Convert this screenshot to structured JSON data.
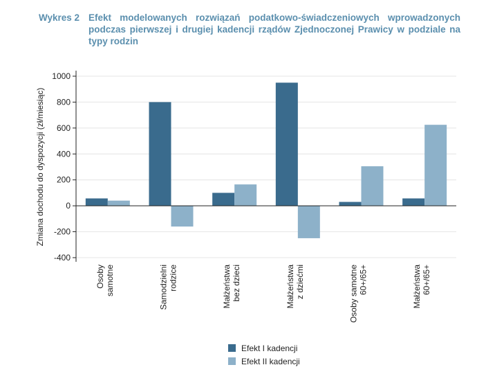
{
  "figure": {
    "label": "Wykres 2",
    "title": "Efekt modelowanych rozwiązań podatkowo-świadczeniowych wprowadzonych podczas pierwszej i drugiej kadencji rządów Zjednoczonej Prawicy w podziale na typy rodzin"
  },
  "chart_data": {
    "type": "bar",
    "title": "",
    "xlabel": "",
    "ylabel": "Zmiana dochodu do dyspozycji (zł/miesiąc)",
    "ylim": [
      -400,
      1000
    ],
    "yticks": [
      -400,
      -200,
      0,
      200,
      400,
      600,
      800,
      1000
    ],
    "grid": true,
    "legend_position": "bottom-center",
    "categories": [
      [
        "Osoby",
        "samotne"
      ],
      [
        "Samodzielni",
        "rodzice"
      ],
      [
        "Małżeństwa",
        "bez dzieci"
      ],
      [
        "Małżeństwa",
        "z dziećmi"
      ],
      [
        "Osoby samotne",
        "60+/65+"
      ],
      [
        "Małżeństwa",
        "60+/65+"
      ]
    ],
    "series": [
      {
        "name": "Efekt I kadencji",
        "color": "#3a6b8d",
        "values": [
          57,
          800,
          100,
          950,
          30,
          57
        ]
      },
      {
        "name": "Efekt II kadencji",
        "color": "#8db1c9",
        "values": [
          40,
          -160,
          165,
          -250,
          305,
          625
        ]
      }
    ]
  }
}
